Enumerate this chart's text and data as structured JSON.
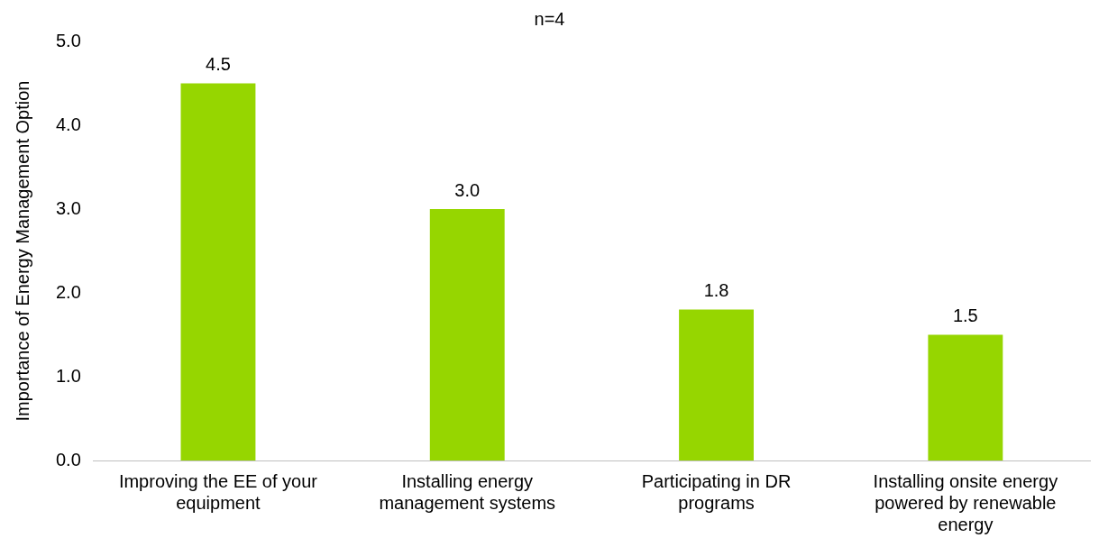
{
  "chart_data": {
    "type": "bar",
    "title": "n=4",
    "ylabel": "Importance of Energy Management Option",
    "categories": [
      "Improving the EE of your equipment",
      "Installing energy management systems",
      "Participating in DR programs",
      "Installing onsite energy powered by renewable energy"
    ],
    "values": [
      4.5,
      3.0,
      1.8,
      1.5
    ],
    "color": "#96d600",
    "value_labels": [
      "4.5",
      "3.0",
      "1.8",
      "1.5"
    ],
    "ylim": [
      0,
      5
    ],
    "yticks": [
      {
        "value": 0,
        "label": "0.0"
      },
      {
        "value": 1,
        "label": "1.0"
      },
      {
        "value": 2,
        "label": "2.0"
      },
      {
        "value": 3,
        "label": "3.0"
      },
      {
        "value": 4,
        "label": "4.0"
      },
      {
        "value": 5,
        "label": "5.0"
      }
    ],
    "grid": false,
    "legend": false
  }
}
